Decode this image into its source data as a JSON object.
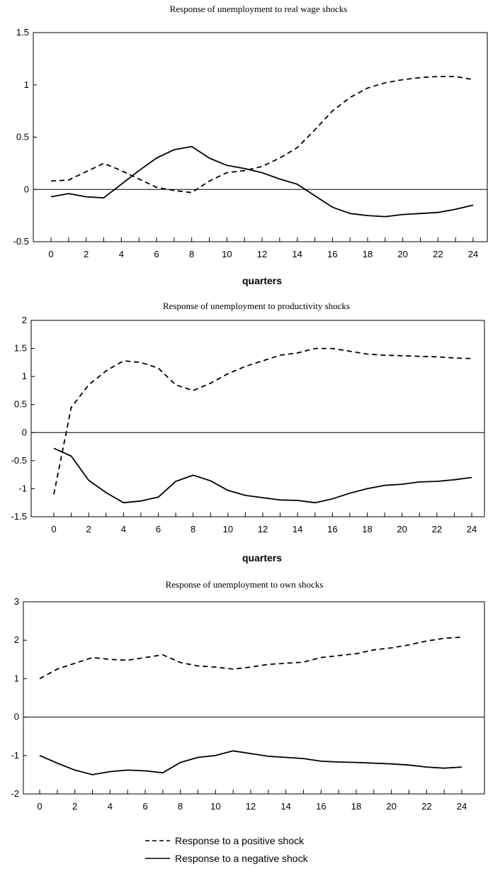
{
  "legend": {
    "positive_label": "Response to a positive shock",
    "negative_label": "Response to a negative shock"
  },
  "chart_data": [
    {
      "type": "line",
      "title": "Response of unemployment to  real wage shocks",
      "xlabel": "quarters",
      "ylabel": "",
      "xlim": [
        0,
        24
      ],
      "ylim": [
        -0.5,
        1.5
      ],
      "yticks": [
        "1.5",
        "1",
        "0.5",
        "0",
        "-0.5"
      ],
      "xticks": [
        "0",
        "2",
        "4",
        "6",
        "8",
        "10",
        "12",
        "14",
        "16",
        "18",
        "20",
        "22",
        "24"
      ],
      "x": [
        0,
        1,
        2,
        3,
        4,
        5,
        6,
        7,
        8,
        9,
        10,
        11,
        12,
        13,
        14,
        15,
        16,
        17,
        18,
        19,
        20,
        21,
        22,
        23,
        24
      ],
      "series": [
        {
          "name": "Response to a positive shock",
          "style": "dashed",
          "values": [
            0.08,
            0.09,
            0.17,
            0.25,
            0.18,
            0.1,
            0.02,
            -0.01,
            -0.03,
            0.08,
            0.16,
            0.18,
            0.22,
            0.3,
            0.4,
            0.57,
            0.75,
            0.88,
            0.97,
            1.02,
            1.05,
            1.07,
            1.08,
            1.08,
            1.05
          ]
        },
        {
          "name": "Response to a negative shock",
          "style": "solid",
          "values": [
            -0.07,
            -0.04,
            -0.07,
            -0.08,
            0.05,
            0.18,
            0.3,
            0.38,
            0.41,
            0.3,
            0.23,
            0.2,
            0.16,
            0.1,
            0.05,
            -0.06,
            -0.17,
            -0.23,
            -0.25,
            -0.26,
            -0.24,
            -0.23,
            -0.22,
            -0.19,
            -0.15
          ]
        }
      ]
    },
    {
      "type": "line",
      "title": "Response of unemployment  to productivity shocks",
      "xlabel": "quarters",
      "ylabel": "",
      "xlim": [
        0,
        24
      ],
      "ylim": [
        -1.5,
        2
      ],
      "yticks": [
        "2",
        "1.5",
        "1",
        "0.5",
        "0",
        "-0.5",
        "-1",
        "-1.5"
      ],
      "xticks": [
        "0",
        "2",
        "4",
        "6",
        "8",
        "10",
        "12",
        "14",
        "16",
        "18",
        "20",
        "22",
        "24"
      ],
      "x": [
        0,
        1,
        2,
        3,
        4,
        5,
        6,
        7,
        8,
        9,
        10,
        11,
        12,
        13,
        14,
        15,
        16,
        17,
        18,
        19,
        20,
        21,
        22,
        23,
        24
      ],
      "series": [
        {
          "name": "Response to a positive shock",
          "style": "dashed",
          "values": [
            -1.1,
            0.45,
            0.85,
            1.1,
            1.28,
            1.25,
            1.15,
            0.85,
            0.75,
            0.88,
            1.05,
            1.18,
            1.28,
            1.38,
            1.42,
            1.5,
            1.5,
            1.45,
            1.4,
            1.38,
            1.37,
            1.36,
            1.35,
            1.33,
            1.32
          ]
        },
        {
          "name": "Response to a negative shock",
          "style": "solid",
          "values": [
            -0.28,
            -0.42,
            -0.85,
            -1.07,
            -1.25,
            -1.22,
            -1.15,
            -0.87,
            -0.76,
            -0.86,
            -1.03,
            -1.12,
            -1.16,
            -1.2,
            -1.21,
            -1.25,
            -1.18,
            -1.08,
            -1.0,
            -0.94,
            -0.92,
            -0.88,
            -0.87,
            -0.84,
            -0.8
          ]
        }
      ]
    },
    {
      "type": "line",
      "title": "Response of unemployment  to own shocks",
      "xlabel": "",
      "ylabel": "",
      "xlim": [
        0,
        24
      ],
      "ylim": [
        -2,
        3
      ],
      "yticks": [
        "3",
        "2",
        "1",
        "0",
        "-1",
        "-2"
      ],
      "xticks": [
        "0",
        "2",
        "4",
        "6",
        "8",
        "10",
        "12",
        "14",
        "16",
        "18",
        "20",
        "22",
        "24"
      ],
      "x": [
        0,
        1,
        2,
        3,
        4,
        5,
        6,
        7,
        8,
        9,
        10,
        11,
        12,
        13,
        14,
        15,
        16,
        17,
        18,
        19,
        20,
        21,
        22,
        23,
        24
      ],
      "series": [
        {
          "name": "Response to a positive shock",
          "style": "dashed",
          "values": [
            1.0,
            1.25,
            1.4,
            1.55,
            1.5,
            1.48,
            1.55,
            1.62,
            1.42,
            1.33,
            1.3,
            1.25,
            1.3,
            1.37,
            1.4,
            1.43,
            1.55,
            1.6,
            1.65,
            1.75,
            1.8,
            1.88,
            1.98,
            2.05,
            2.08
          ]
        },
        {
          "name": "Response to a negative shock",
          "style": "solid",
          "values": [
            -1.0,
            -1.2,
            -1.38,
            -1.5,
            -1.42,
            -1.38,
            -1.4,
            -1.45,
            -1.18,
            -1.05,
            -1.0,
            -0.88,
            -0.95,
            -1.02,
            -1.05,
            -1.08,
            -1.15,
            -1.17,
            -1.18,
            -1.2,
            -1.22,
            -1.25,
            -1.3,
            -1.33,
            -1.3
          ]
        }
      ]
    }
  ]
}
